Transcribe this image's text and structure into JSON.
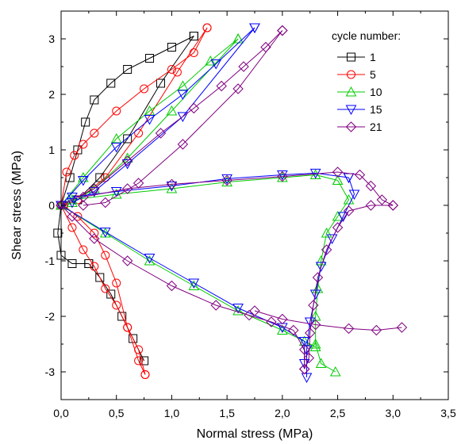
{
  "chart_data": {
    "type": "scatter",
    "xlabel": "Normal stress (MPa)",
    "ylabel": "Shear stress (MPa)",
    "xlim": [
      0,
      3.5
    ],
    "ylim": [
      -3.5,
      3.5
    ],
    "x_ticks": [
      "0,0",
      "0,5",
      "1,0",
      "1,5",
      "2,0",
      "2,5",
      "3,0",
      "3,5"
    ],
    "y_ticks": [
      "-3",
      "-2",
      "-1",
      "0",
      "1",
      "2",
      "3"
    ],
    "grid": false,
    "legend_title": "cycle number:",
    "legend_position": "top-right",
    "series": [
      {
        "name": "1",
        "color": "#000000",
        "marker": "square",
        "segments": [
          [
            [
              0.0,
              0.0
            ],
            [
              0.08,
              0.5
            ],
            [
              0.15,
              1.0
            ],
            [
              0.22,
              1.5
            ],
            [
              0.3,
              1.9
            ],
            [
              0.45,
              2.2
            ],
            [
              0.6,
              2.45
            ],
            [
              0.8,
              2.65
            ],
            [
              1.0,
              2.85
            ],
            [
              1.2,
              3.05
            ]
          ],
          [
            [
              1.2,
              3.05
            ],
            [
              0.9,
              2.2
            ],
            [
              0.6,
              1.2
            ],
            [
              0.35,
              0.5
            ],
            [
              0.15,
              0.1
            ],
            [
              0.02,
              0.0
            ]
          ],
          [
            [
              0.0,
              0.0
            ],
            [
              -0.03,
              -0.5
            ],
            [
              0.0,
              -0.9
            ],
            [
              0.1,
              -1.05
            ],
            [
              0.25,
              -1.05
            ]
          ],
          [
            [
              0.25,
              -1.05
            ],
            [
              0.35,
              -1.3
            ],
            [
              0.45,
              -1.6
            ],
            [
              0.55,
              -2.0
            ],
            [
              0.65,
              -2.4
            ],
            [
              0.75,
              -2.8
            ]
          ]
        ]
      },
      {
        "name": "5",
        "color": "#ff0000",
        "marker": "circle",
        "segments": [
          [
            [
              0.0,
              0.0
            ],
            [
              0.05,
              0.6
            ],
            [
              0.12,
              0.9
            ],
            [
              0.2,
              1.1
            ],
            [
              0.3,
              1.3
            ],
            [
              0.5,
              1.7
            ],
            [
              0.75,
              2.1
            ],
            [
              1.0,
              2.45
            ],
            [
              1.2,
              2.75
            ],
            [
              1.32,
              3.2
            ]
          ],
          [
            [
              1.32,
              3.2
            ],
            [
              1.05,
              2.4
            ],
            [
              0.7,
              1.3
            ],
            [
              0.4,
              0.5
            ],
            [
              0.15,
              0.1
            ],
            [
              0.02,
              0.0
            ]
          ],
          [
            [
              0.0,
              0.0
            ],
            [
              0.1,
              -0.4
            ],
            [
              0.2,
              -0.8
            ],
            [
              0.3,
              -1.1
            ],
            [
              0.4,
              -1.5
            ],
            [
              0.5,
              -1.8
            ],
            [
              0.6,
              -2.2
            ],
            [
              0.7,
              -2.6
            ],
            [
              0.76,
              -3.05
            ]
          ],
          [
            [
              0.76,
              -3.05
            ],
            [
              0.7,
              -2.8
            ],
            [
              0.6,
              -2.2
            ],
            [
              0.5,
              -1.4
            ],
            [
              0.4,
              -0.9
            ],
            [
              0.3,
              -0.5
            ],
            [
              0.15,
              -0.2
            ],
            [
              0.02,
              0.0
            ]
          ]
        ]
      },
      {
        "name": "10",
        "color": "#00cc00",
        "marker": "triangle-up",
        "segments": [
          [
            [
              0.0,
              0.0
            ],
            [
              0.2,
              0.5
            ],
            [
              0.5,
              1.2
            ],
            [
              0.8,
              1.7
            ],
            [
              1.1,
              2.15
            ],
            [
              1.35,
              2.6
            ],
            [
              1.6,
              3.0
            ]
          ],
          [
            [
              1.6,
              3.0
            ],
            [
              1.0,
              1.7
            ],
            [
              0.6,
              0.85
            ],
            [
              0.3,
              0.3
            ],
            [
              0.1,
              0.05
            ]
          ],
          [
            [
              0.1,
              0.1
            ],
            [
              0.5,
              0.2
            ],
            [
              1.0,
              0.3
            ],
            [
              1.5,
              0.42
            ],
            [
              2.0,
              0.5
            ],
            [
              2.3,
              0.55
            ],
            [
              2.5,
              0.45
            ]
          ],
          [
            [
              2.5,
              0.45
            ],
            [
              2.6,
              0.1
            ],
            [
              2.5,
              -0.2
            ],
            [
              2.4,
              -0.5
            ],
            [
              2.35,
              -1.0
            ],
            [
              2.32,
              -1.5
            ],
            [
              2.3,
              -2.0
            ],
            [
              2.3,
              -2.5
            ],
            [
              2.35,
              -2.85
            ],
            [
              2.48,
              -3.0
            ]
          ],
          [
            [
              0.0,
              0.0
            ],
            [
              0.4,
              -0.5
            ],
            [
              0.8,
              -1.0
            ],
            [
              1.2,
              -1.45
            ],
            [
              1.6,
              -1.9
            ],
            [
              2.0,
              -2.25
            ],
            [
              2.2,
              -2.45
            ],
            [
              2.3,
              -2.55
            ]
          ]
        ]
      },
      {
        "name": "15",
        "color": "#0000ff",
        "marker": "triangle-down",
        "segments": [
          [
            [
              0.0,
              0.0
            ],
            [
              0.2,
              0.45
            ],
            [
              0.5,
              1.05
            ],
            [
              0.8,
              1.55
            ],
            [
              1.1,
              2.0
            ],
            [
              1.4,
              2.55
            ],
            [
              1.75,
              3.2
            ]
          ],
          [
            [
              1.75,
              3.2
            ],
            [
              1.1,
              1.6
            ],
            [
              0.6,
              0.75
            ],
            [
              0.3,
              0.25
            ],
            [
              0.1,
              0.05
            ]
          ],
          [
            [
              0.1,
              0.15
            ],
            [
              0.5,
              0.25
            ],
            [
              1.0,
              0.35
            ],
            [
              1.5,
              0.48
            ],
            [
              2.0,
              0.55
            ],
            [
              2.3,
              0.58
            ],
            [
              2.6,
              0.5
            ]
          ],
          [
            [
              2.6,
              0.5
            ],
            [
              2.65,
              0.2
            ],
            [
              2.55,
              -0.2
            ],
            [
              2.45,
              -0.6
            ],
            [
              2.35,
              -1.1
            ],
            [
              2.3,
              -1.6
            ],
            [
              2.25,
              -2.1
            ],
            [
              2.22,
              -2.6
            ],
            [
              2.22,
              -3.1
            ]
          ],
          [
            [
              0.0,
              0.0
            ],
            [
              0.4,
              -0.48
            ],
            [
              0.8,
              -0.95
            ],
            [
              1.2,
              -1.4
            ],
            [
              1.6,
              -1.85
            ],
            [
              2.0,
              -2.2
            ],
            [
              2.2,
              -2.45
            ],
            [
              2.2,
              -2.85
            ]
          ]
        ]
      },
      {
        "name": "21",
        "color": "#800080",
        "marker": "diamond",
        "segments": [
          [
            [
              0.0,
              0.0
            ],
            [
              0.3,
              0.3
            ],
            [
              0.6,
              0.8
            ],
            [
              0.9,
              1.3
            ],
            [
              1.2,
              1.75
            ],
            [
              1.45,
              2.15
            ],
            [
              1.65,
              2.5
            ],
            [
              1.85,
              2.85
            ],
            [
              2.0,
              3.15
            ]
          ],
          [
            [
              2.0,
              3.15
            ],
            [
              1.6,
              2.1
            ],
            [
              1.1,
              1.1
            ],
            [
              0.7,
              0.4
            ],
            [
              0.4,
              0.05
            ],
            [
              0.2,
              0.0
            ]
          ],
          [
            [
              0.2,
              0.15
            ],
            [
              0.6,
              0.3
            ],
            [
              1.0,
              0.38
            ],
            [
              1.5,
              0.45
            ],
            [
              2.0,
              0.52
            ],
            [
              2.5,
              0.6
            ],
            [
              2.7,
              0.55
            ],
            [
              2.8,
              0.35
            ],
            [
              2.9,
              0.1
            ],
            [
              3.0,
              0.0
            ]
          ],
          [
            [
              3.0,
              0.0
            ],
            [
              2.8,
              0.0
            ],
            [
              2.6,
              -0.1
            ],
            [
              2.5,
              -0.4
            ],
            [
              2.4,
              -0.8
            ],
            [
              2.32,
              -1.3
            ],
            [
              2.28,
              -1.8
            ],
            [
              2.25,
              -2.3
            ],
            [
              2.24,
              -2.75
            ],
            [
              2.2,
              -2.95
            ]
          ],
          [
            [
              2.2,
              -2.95
            ],
            [
              2.2,
              -2.6
            ],
            [
              2.1,
              -2.25
            ],
            [
              1.9,
              -2.1
            ],
            [
              1.7,
              -1.98
            ],
            [
              1.4,
              -1.8
            ],
            [
              1.0,
              -1.45
            ],
            [
              0.6,
              -1.0
            ],
            [
              0.3,
              -0.6
            ],
            [
              0.1,
              -0.2
            ],
            [
              0.0,
              0.0
            ]
          ],
          [
            [
              1.75,
              -1.9
            ],
            [
              2.0,
              -2.05
            ],
            [
              2.3,
              -2.15
            ],
            [
              2.6,
              -2.22
            ],
            [
              2.85,
              -2.25
            ],
            [
              3.08,
              -2.2
            ]
          ]
        ]
      }
    ]
  }
}
